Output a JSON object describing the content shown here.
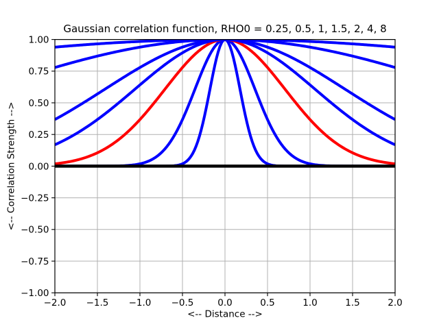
{
  "figure": {
    "background": "#ffffff",
    "plot_background": "#ffffff",
    "spine_color": "#000000"
  },
  "chart_data": {
    "type": "line",
    "title": "Gaussian correlation function, RHO0 = 0.25, 0.5, 1, 1.5, 2, 4, 8",
    "xlabel": "<-- Distance -->",
    "ylabel": "<-- Correlation Strength -->",
    "xlim": [
      -2.0,
      2.0
    ],
    "ylim": [
      -1.0,
      1.0
    ],
    "xticks": [
      -2.0,
      -1.5,
      -1.0,
      -0.5,
      0.0,
      0.5,
      1.0,
      1.5,
      2.0
    ],
    "xtick_labels": [
      "−2.0",
      "−1.5",
      "−1.0",
      "−0.5",
      "0.0",
      "0.5",
      "1.0",
      "1.5",
      "2.0"
    ],
    "yticks": [
      -1.0,
      -0.75,
      -0.5,
      -0.25,
      0.0,
      0.25,
      0.5,
      0.75,
      1.0
    ],
    "ytick_labels": [
      "−1.00",
      "−0.75",
      "−0.50",
      "−0.25",
      "0.00",
      "0.25",
      "0.50",
      "0.75",
      "1.00"
    ],
    "grid": true,
    "grid_color": "#b0b0b0",
    "legend": "none",
    "function": "corr(d) = exp(-(d/rho0)^2)",
    "x_samples": [
      -2.0,
      -1.8,
      -1.6,
      -1.4,
      -1.2,
      -1.0,
      -0.8,
      -0.6,
      -0.4,
      -0.2,
      0.0,
      0.2,
      0.4,
      0.6,
      0.8,
      1.0,
      1.2,
      1.4,
      1.6,
      1.8,
      2.0
    ],
    "series": [
      {
        "name": "rho0 = 0.25",
        "rho0": 0.25,
        "color": "#0000ff",
        "linewidth": 4,
        "y_samples": [
          0,
          0,
          0,
          0,
          0,
          0,
          0,
          0.0032,
          0.0773,
          0.5273,
          1.0,
          0.5273,
          0.0773,
          0.0032,
          0,
          0,
          0,
          0,
          0,
          0,
          0
        ]
      },
      {
        "name": "rho0 = 0.5",
        "rho0": 0.5,
        "color": "#0000ff",
        "linewidth": 4,
        "y_samples": [
          0,
          0,
          0,
          0.0004,
          0.0032,
          0.0183,
          0.0773,
          0.2369,
          0.5273,
          0.8521,
          1.0,
          0.8521,
          0.5273,
          0.2369,
          0.0773,
          0.0183,
          0.0032,
          0.0004,
          0,
          0,
          0
        ]
      },
      {
        "name": "rho0 = 1",
        "rho0": 1,
        "color": "#ff0000",
        "linewidth": 4,
        "y_samples": [
          0.0183,
          0.0392,
          0.0773,
          0.1409,
          0.2369,
          0.3679,
          0.5273,
          0.6977,
          0.8521,
          0.9608,
          1.0,
          0.9608,
          0.8521,
          0.6977,
          0.5273,
          0.3679,
          0.2369,
          0.1409,
          0.0773,
          0.0392,
          0.0183
        ]
      },
      {
        "name": "rho0 = 1.5",
        "rho0": 1.5,
        "color": "#0000ff",
        "linewidth": 4,
        "y_samples": [
          0.169,
          0.2369,
          0.3205,
          0.4184,
          0.5273,
          0.6412,
          0.7524,
          0.8521,
          0.9314,
          0.9824,
          1.0,
          0.9824,
          0.9314,
          0.8521,
          0.7524,
          0.6412,
          0.5273,
          0.4184,
          0.3205,
          0.2369,
          0.169
        ]
      },
      {
        "name": "rho0 = 2",
        "rho0": 2,
        "color": "#0000ff",
        "linewidth": 4,
        "y_samples": [
          0.3679,
          0.4449,
          0.5273,
          0.6126,
          0.6977,
          0.7788,
          0.8521,
          0.9139,
          0.9608,
          0.99,
          1.0,
          0.99,
          0.9608,
          0.9139,
          0.8521,
          0.7788,
          0.6977,
          0.6126,
          0.5273,
          0.4449,
          0.3679
        ]
      },
      {
        "name": "rho0 = 4",
        "rho0": 4,
        "color": "#0000ff",
        "linewidth": 4,
        "y_samples": [
          0.7788,
          0.8167,
          0.8521,
          0.8847,
          0.9139,
          0.9394,
          0.9608,
          0.9778,
          0.99,
          0.9975,
          1.0,
          0.9975,
          0.99,
          0.9778,
          0.9608,
          0.9394,
          0.9139,
          0.8847,
          0.8521,
          0.8167,
          0.7788
        ]
      },
      {
        "name": "rho0 = 8",
        "rho0": 8,
        "color": "#0000ff",
        "linewidth": 4,
        "y_samples": [
          0.9394,
          0.9506,
          0.9608,
          0.9698,
          0.9778,
          0.9845,
          0.99,
          0.9944,
          0.9975,
          0.9994,
          1.0,
          0.9994,
          0.9975,
          0.9944,
          0.99,
          0.9845,
          0.9778,
          0.9698,
          0.9608,
          0.9506,
          0.9394
        ]
      },
      {
        "name": "zero line",
        "hline": 0.0,
        "color": "#000000",
        "linewidth": 4.5,
        "y_samples": [
          0,
          0,
          0,
          0,
          0,
          0,
          0,
          0,
          0,
          0,
          0,
          0,
          0,
          0,
          0,
          0,
          0,
          0,
          0,
          0,
          0
        ]
      }
    ]
  }
}
